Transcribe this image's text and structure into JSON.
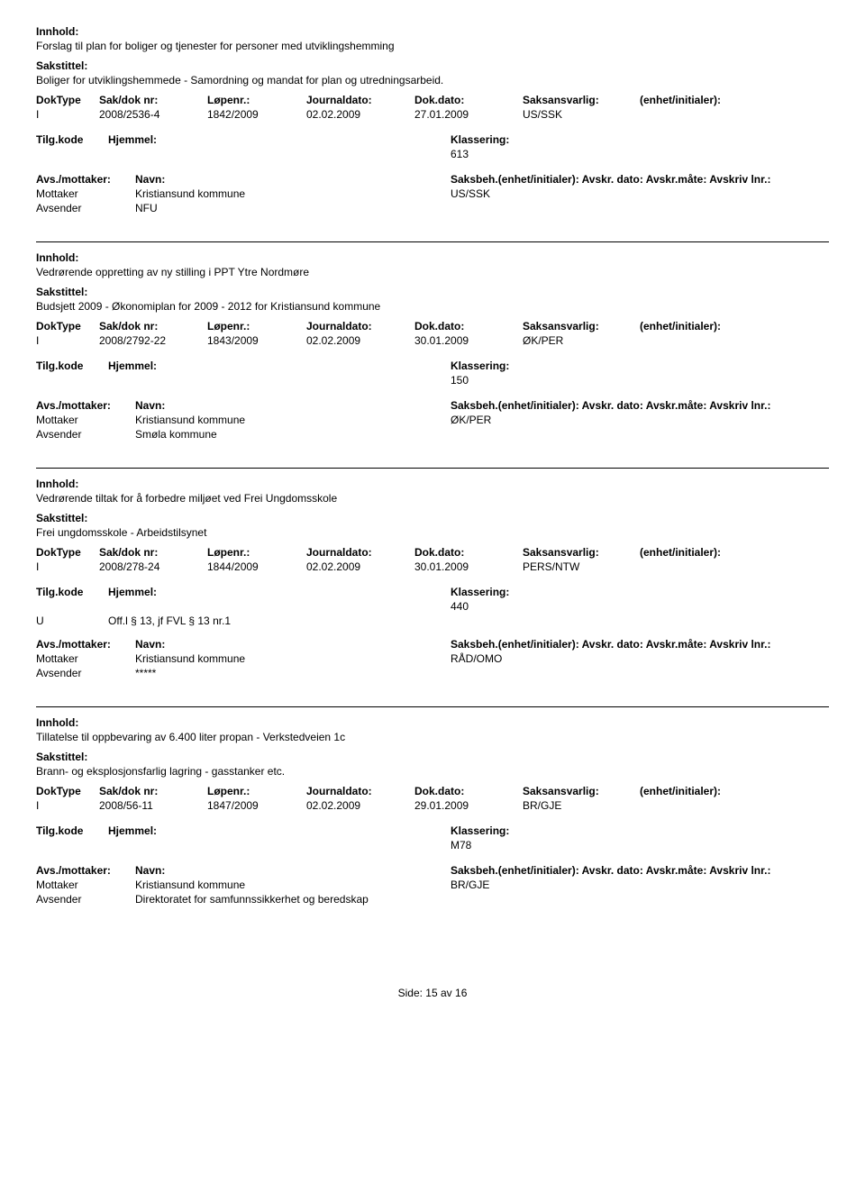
{
  "labels": {
    "innhold": "Innhold:",
    "sakstittel": "Sakstittel:",
    "doktype": "DokType",
    "saknr": "Sak/dok nr:",
    "lopenr": "Løpenr.:",
    "journaldato": "Journaldato:",
    "dokdato": "Dok.dato:",
    "saksansvarlig": "Saksansvarlig:",
    "enhet": "(enhet/initialer):",
    "tilgkode": "Tilg.kode",
    "hjemmel": "Hjemmel:",
    "klassering": "Klassering:",
    "avsmottaker": "Avs./mottaker:",
    "navn": "Navn:",
    "saksbeh_line": "Saksbeh.(enhet/initialer): Avskr. dato: Avskr.måte: Avskriv lnr.:",
    "mottaker": "Mottaker",
    "avsender": "Avsender",
    "side": "Side:",
    "av": "av"
  },
  "entries": [
    {
      "innhold": "Forslag til plan for boliger og tjenester for personer med utviklingshemming",
      "sakstittel": "Boliger for utviklingshemmede - Samordning og mandat for plan og utredningsarbeid.",
      "doktype": "I",
      "saknr": "2008/2536-4",
      "lopenr": "1842/2009",
      "journaldato": "02.02.2009",
      "dokdato": "27.01.2009",
      "saksansvarlig": "US/SSK",
      "tilgkode": "",
      "hjemmel": "",
      "klassering": "613",
      "mottaker_name": "Kristiansund kommune",
      "mottaker_saksbeh": "US/SSK",
      "avsender_name": "NFU"
    },
    {
      "innhold": "Vedrørende oppretting av ny stilling i PPT Ytre Nordmøre",
      "sakstittel": "Budsjett 2009 - Økonomiplan for 2009 - 2012 for Kristiansund kommune",
      "doktype": "I",
      "saknr": "2008/2792-22",
      "lopenr": "1843/2009",
      "journaldato": "02.02.2009",
      "dokdato": "30.01.2009",
      "saksansvarlig": "ØK/PER",
      "tilgkode": "",
      "hjemmel": "",
      "klassering": "150",
      "mottaker_name": "Kristiansund kommune",
      "mottaker_saksbeh": "ØK/PER",
      "avsender_name": "Smøla kommune"
    },
    {
      "innhold": "Vedrørende tiltak for å forbedre miljøet ved Frei Ungdomsskole",
      "sakstittel": "Frei ungdomsskole - Arbeidstilsynet",
      "doktype": "I",
      "saknr": "2008/278-24",
      "lopenr": "1844/2009",
      "journaldato": "02.02.2009",
      "dokdato": "30.01.2009",
      "saksansvarlig": "PERS/NTW",
      "tilgkode": "U",
      "hjemmel": "Off.l § 13, jf FVL § 13 nr.1",
      "klassering": "440",
      "mottaker_name": "Kristiansund kommune",
      "mottaker_saksbeh": "RÅD/OMO",
      "avsender_name": "*****"
    },
    {
      "innhold": "Tillatelse til oppbevaring av 6.400 liter propan - Verkstedveien 1c",
      "sakstittel": "Brann- og eksplosjonsfarlig lagring - gasstanker etc.",
      "doktype": "I",
      "saknr": "2008/56-11",
      "lopenr": "1847/2009",
      "journaldato": "02.02.2009",
      "dokdato": "29.01.2009",
      "saksansvarlig": "BR/GJE",
      "tilgkode": "",
      "hjemmel": "",
      "klassering": "M78",
      "mottaker_name": "Kristiansund kommune",
      "mottaker_saksbeh": "BR/GJE",
      "avsender_name": "Direktoratet for samfunnssikkerhet og beredskap"
    }
  ],
  "footer": {
    "page": "15",
    "total": "16"
  }
}
